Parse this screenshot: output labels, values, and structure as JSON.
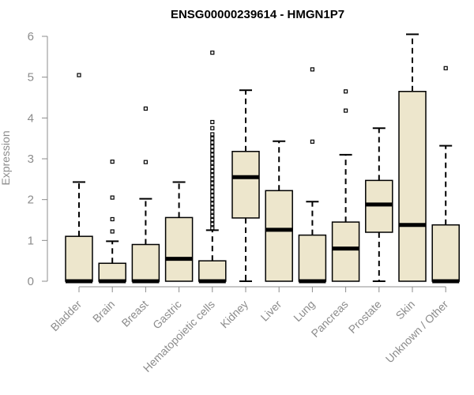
{
  "chart_data": {
    "type": "box",
    "title": "ENSG00000239614 - HMGN1P7",
    "xlabel": "",
    "ylabel": "Expression",
    "ylim": [
      0,
      6
    ],
    "yticks": [
      0,
      1,
      2,
      3,
      4,
      5,
      6
    ],
    "categories": [
      "Bladder",
      "Brain",
      "Breast",
      "Gastric",
      "Hematopoietic cells",
      "Kidney",
      "Liver",
      "Lung",
      "Pancreas",
      "Prostate",
      "Skin",
      "Unknown / Other"
    ],
    "boxes": [
      {
        "category": "Bladder",
        "whisker_low": 0,
        "q1": 0,
        "median": 0,
        "q3": 1.1,
        "whisker_high": 2.43,
        "outliers": [
          5.05
        ]
      },
      {
        "category": "Brain",
        "whisker_low": 0,
        "q1": 0,
        "median": 0,
        "q3": 0.44,
        "whisker_high": 0.98,
        "outliers": [
          1.22,
          1.52,
          2.05,
          2.93
        ]
      },
      {
        "category": "Breast",
        "whisker_low": 0,
        "q1": 0,
        "median": 0,
        "q3": 0.9,
        "whisker_high": 2.02,
        "outliers": [
          2.92,
          4.23
        ]
      },
      {
        "category": "Gastric",
        "whisker_low": 0,
        "q1": 0,
        "median": 0.55,
        "q3": 1.56,
        "whisker_high": 2.43,
        "outliers": []
      },
      {
        "category": "Hematopoietic cells",
        "whisker_low": 0,
        "q1": 0,
        "median": 0,
        "q3": 0.5,
        "whisker_high": 1.25,
        "outliers": [
          1.3,
          1.4,
          1.5,
          1.6,
          1.7,
          1.8,
          1.9,
          2.0,
          2.1,
          2.2,
          2.3,
          2.4,
          2.5,
          2.6,
          2.7,
          2.8,
          2.9,
          3.0,
          3.1,
          3.2,
          3.3,
          3.4,
          3.5,
          3.6,
          3.75,
          3.9,
          5.6
        ]
      },
      {
        "category": "Kidney",
        "whisker_low": 0,
        "q1": 1.55,
        "median": 2.55,
        "q3": 3.18,
        "whisker_high": 4.68,
        "outliers": []
      },
      {
        "category": "Liver",
        "whisker_low": 0,
        "q1": 0,
        "median": 1.26,
        "q3": 2.22,
        "whisker_high": 3.43,
        "outliers": []
      },
      {
        "category": "Lung",
        "whisker_low": 0,
        "q1": 0,
        "median": 0,
        "q3": 1.13,
        "whisker_high": 1.95,
        "outliers": [
          3.42,
          5.19
        ]
      },
      {
        "category": "Pancreas",
        "whisker_low": 0,
        "q1": 0,
        "median": 0.8,
        "q3": 1.45,
        "whisker_high": 3.1,
        "outliers": [
          4.18,
          4.65
        ]
      },
      {
        "category": "Prostate",
        "whisker_low": 0,
        "q1": 1.2,
        "median": 1.88,
        "q3": 2.47,
        "whisker_high": 3.75,
        "outliers": []
      },
      {
        "category": "Skin",
        "whisker_low": 0,
        "q1": 0,
        "median": 1.38,
        "q3": 4.65,
        "whisker_high": 6.05,
        "outliers": []
      },
      {
        "category": "Unknown / Other",
        "whisker_low": 0,
        "q1": 0,
        "median": 0,
        "q3": 1.38,
        "whisker_high": 3.32,
        "outliers": [
          5.22
        ]
      }
    ],
    "box_fill": "#ede6cc",
    "grid": false,
    "legend": "none"
  }
}
